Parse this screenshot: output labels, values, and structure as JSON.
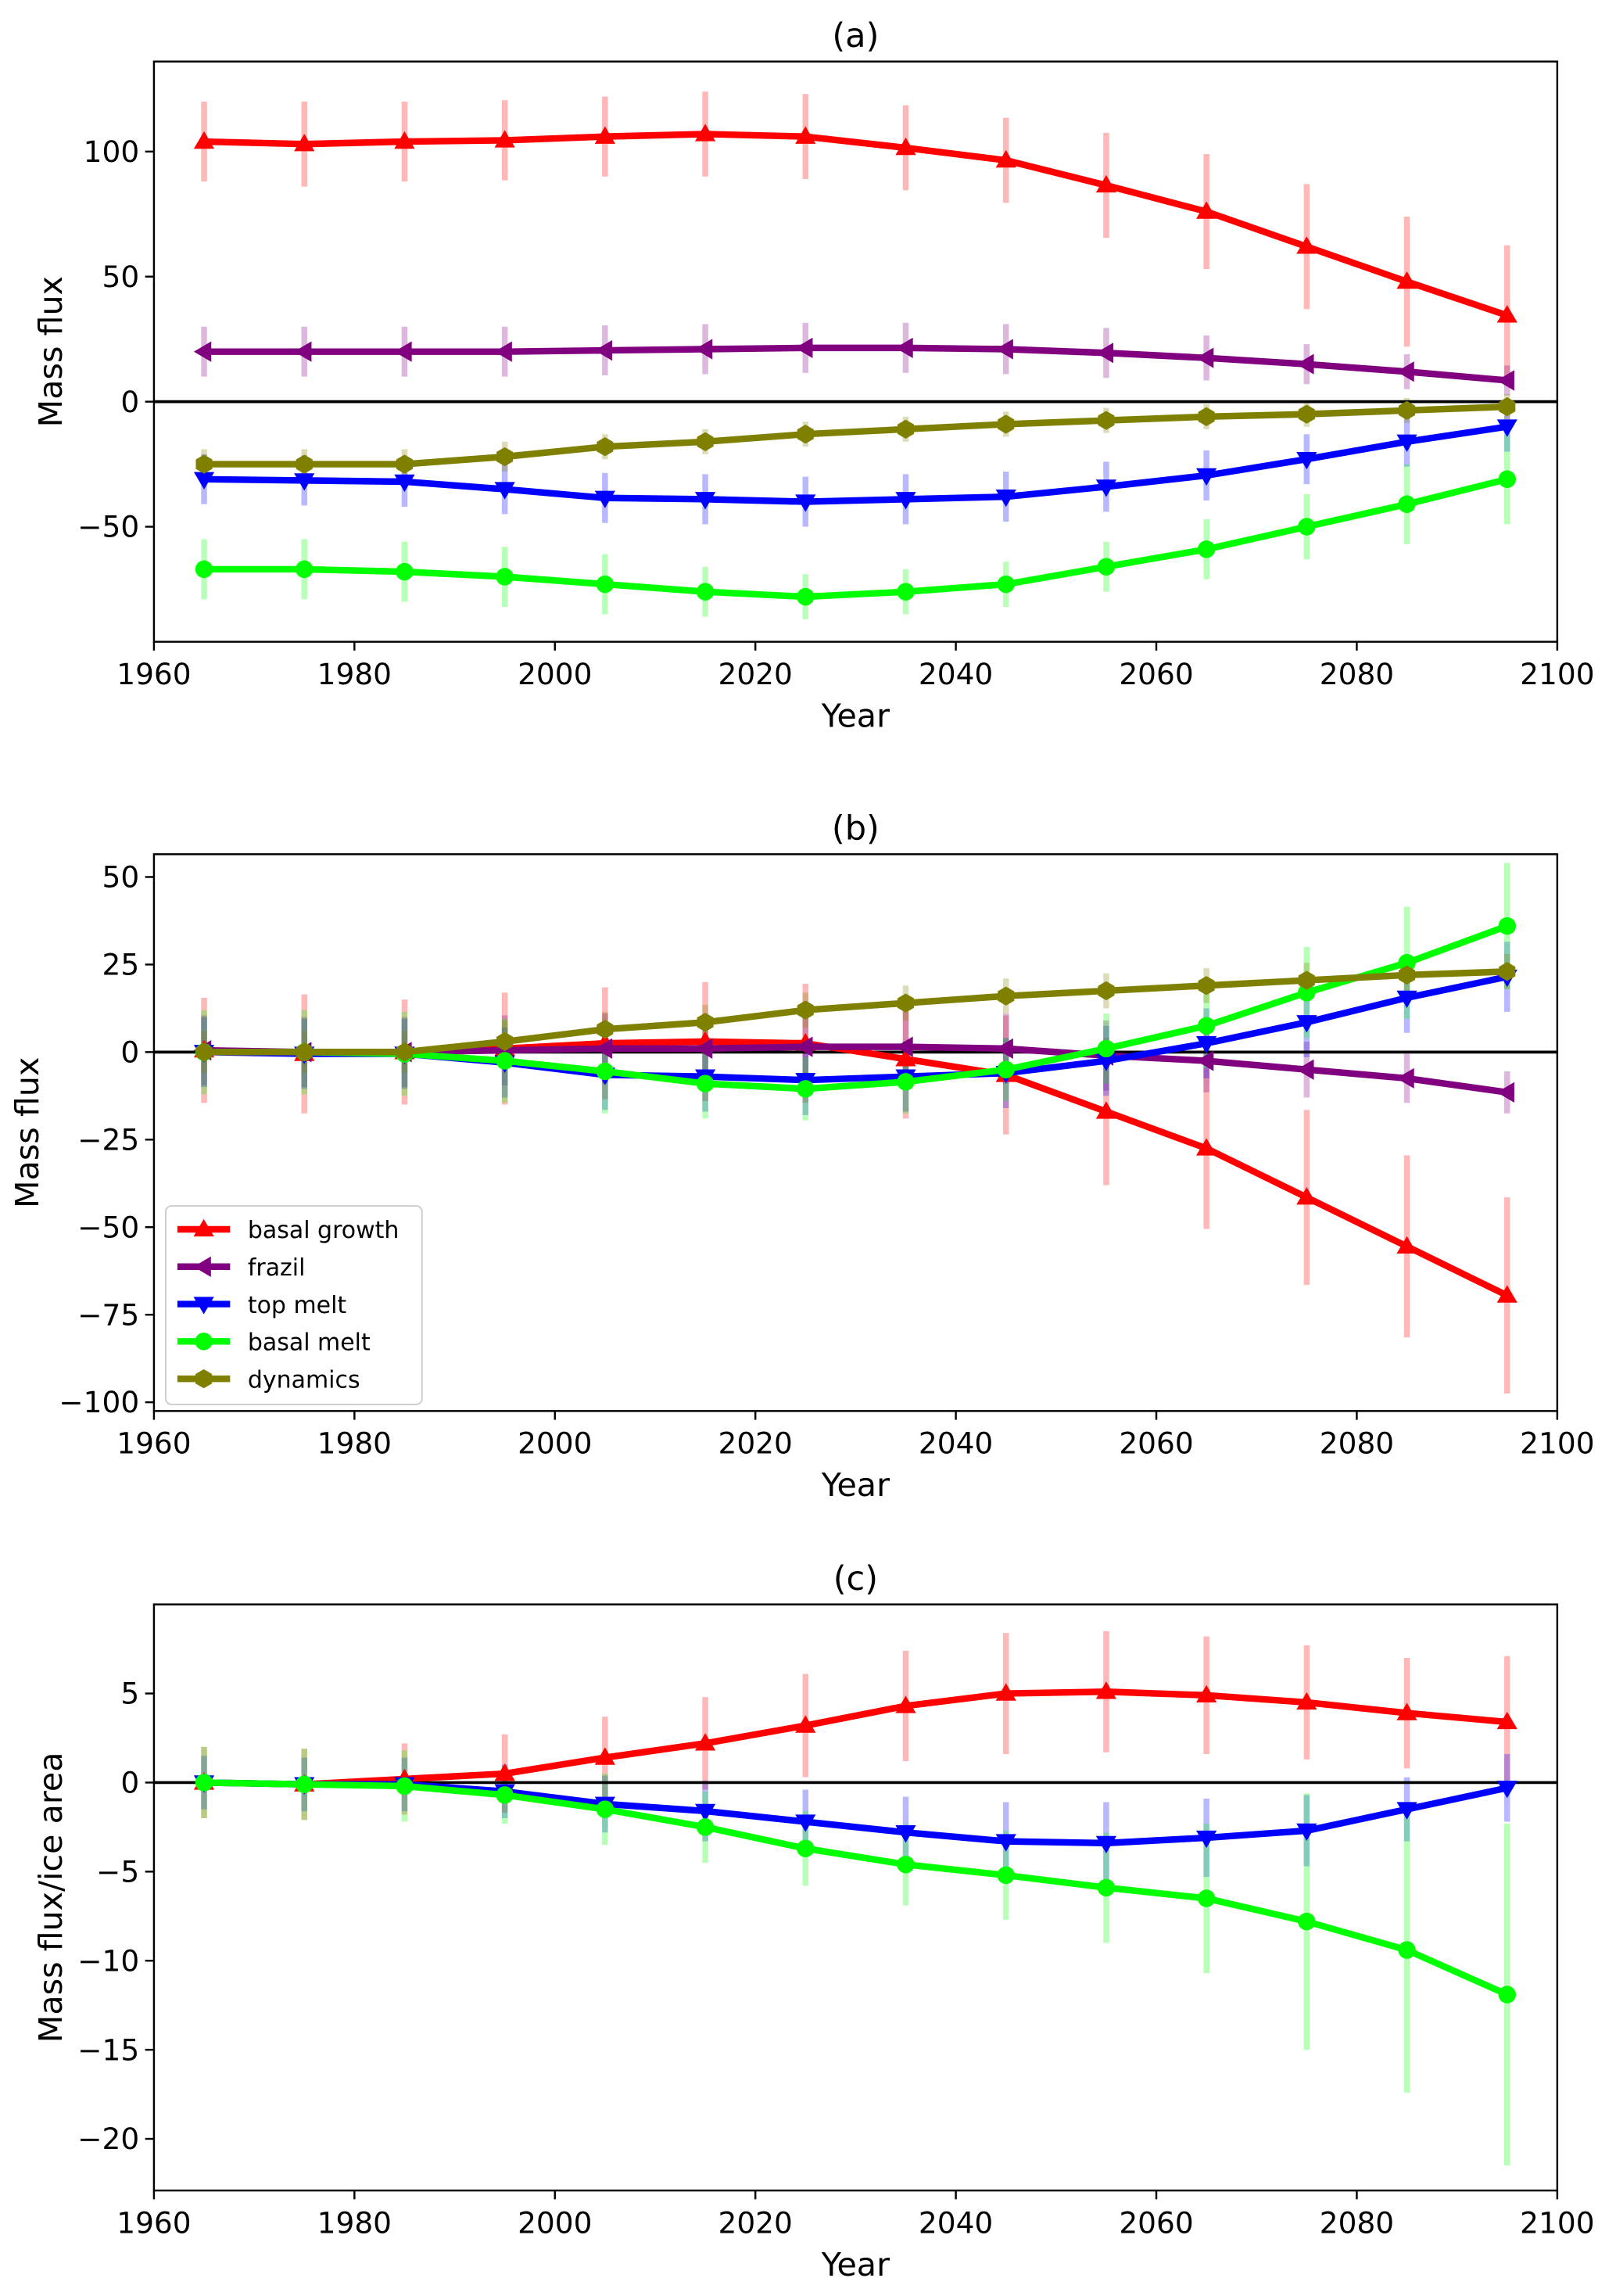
{
  "chart_data": [
    {
      "type": "line",
      "title": "(a)",
      "xlabel": "Year",
      "ylabel": "Mass flux",
      "xlim": [
        1960,
        2100
      ],
      "ylim": [
        -96,
        136
      ],
      "xticks": [
        1960,
        1980,
        2000,
        2020,
        2040,
        2060,
        2080,
        2100
      ],
      "yticks": [
        -50,
        0,
        50,
        100
      ],
      "x": [
        1965,
        1975,
        1985,
        1995,
        2005,
        2015,
        2025,
        2035,
        2045,
        2055,
        2065,
        2075,
        2085,
        2095
      ],
      "legend": null,
      "series": [
        {
          "name": "basal growth",
          "color": "#ff0000",
          "marker": "triangle-up",
          "values": [
            104,
            103,
            104,
            104.5,
            106,
            107,
            106,
            101.5,
            96.5,
            86.5,
            76,
            62,
            48,
            34.5
          ],
          "errors": [
            16,
            17,
            16,
            16,
            16,
            17,
            17,
            17,
            17,
            21,
            23,
            25,
            26,
            28
          ]
        },
        {
          "name": "frazil",
          "color": "#800080",
          "marker": "triangle-left",
          "values": [
            20,
            20,
            20,
            20,
            20.5,
            21,
            21.5,
            21.5,
            21,
            19.5,
            17.5,
            15,
            12,
            8.5
          ],
          "errors": [
            10,
            10,
            10,
            10,
            10,
            10,
            10,
            10,
            10,
            10,
            9,
            8,
            7,
            6
          ]
        },
        {
          "name": "top melt",
          "color": "#0000ff",
          "marker": "triangle-down",
          "values": [
            -31,
            -31.5,
            -32,
            -35,
            -38.5,
            -39,
            -40,
            -39,
            -38,
            -34,
            -29.5,
            -23,
            -16,
            -10
          ],
          "errors": [
            10,
            10,
            10,
            10,
            10,
            10,
            10,
            10,
            10,
            10,
            10,
            10,
            10,
            10
          ]
        },
        {
          "name": "basal melt",
          "color": "#00ff00",
          "marker": "circle",
          "values": [
            -67,
            -67,
            -68,
            -70,
            -73,
            -76,
            -78,
            -76,
            -73,
            -66,
            -59,
            -50,
            -41,
            -31
          ],
          "errors": [
            12,
            12,
            12,
            12,
            12,
            10,
            9,
            9,
            9,
            10,
            12,
            13,
            16,
            18
          ]
        },
        {
          "name": "dynamics",
          "color": "#808000",
          "marker": "hexagon",
          "values": [
            -25,
            -25,
            -25,
            -22,
            -18,
            -16,
            -13,
            -11,
            -9,
            -7.5,
            -6,
            -5,
            -3.5,
            -2
          ],
          "errors": [
            6,
            6,
            6,
            6,
            5,
            5,
            5,
            5,
            5,
            5,
            5,
            5,
            5,
            5
          ]
        }
      ]
    },
    {
      "type": "line",
      "title": "(b)",
      "xlabel": "Year",
      "ylabel": "Mass flux",
      "xlim": [
        1960,
        2100
      ],
      "ylim": [
        -102.5,
        56.5
      ],
      "xticks": [
        1960,
        1980,
        2000,
        2020,
        2040,
        2060,
        2080,
        2100
      ],
      "yticks": [
        -100,
        -75,
        -50,
        -25,
        0,
        25,
        50
      ],
      "x": [
        1965,
        1975,
        1985,
        1995,
        2005,
        2015,
        2025,
        2035,
        2045,
        2055,
        2065,
        2075,
        2085,
        2095
      ],
      "legend": "lower-left",
      "series": [
        {
          "name": "basal growth",
          "color": "#ff0000",
          "marker": "triangle-up",
          "values": [
            0.5,
            -0.5,
            0,
            1,
            2.5,
            3,
            2.5,
            -2,
            -6.5,
            -17,
            -27.5,
            -41.5,
            -55.5,
            -69.5
          ],
          "errors": [
            15,
            17,
            15,
            16,
            16,
            17,
            17,
            17,
            17,
            21,
            23,
            25,
            26,
            28
          ]
        },
        {
          "name": "frazil",
          "color": "#800080",
          "marker": "triangle-left",
          "values": [
            0.5,
            0,
            0,
            0.5,
            1,
            1,
            1.5,
            1.5,
            1,
            -1,
            -2.5,
            -5,
            -7.5,
            -11.5
          ],
          "errors": [
            10,
            10,
            10,
            10,
            10,
            10,
            10,
            10,
            10,
            10,
            9,
            8,
            7,
            6
          ]
        },
        {
          "name": "top melt",
          "color": "#0000ff",
          "marker": "triangle-down",
          "values": [
            0,
            -0.5,
            -0.5,
            -3,
            -6.5,
            -7,
            -8,
            -7,
            -6,
            -2.5,
            2.5,
            8.5,
            15.5,
            21.5
          ],
          "errors": [
            10,
            10,
            10,
            10,
            10,
            10,
            10,
            10,
            10,
            10,
            10,
            10,
            10,
            10
          ]
        },
        {
          "name": "basal melt",
          "color": "#00ff00",
          "marker": "circle",
          "values": [
            0,
            0,
            -0.5,
            -2.5,
            -5.5,
            -9,
            -10.5,
            -8.5,
            -5,
            1,
            7.5,
            17,
            25.5,
            36
          ],
          "errors": [
            12,
            12,
            12,
            12,
            12,
            10,
            9,
            9,
            9,
            10,
            12,
            13,
            16,
            18
          ]
        },
        {
          "name": "dynamics",
          "color": "#808000",
          "marker": "hexagon",
          "values": [
            0,
            0,
            0,
            3,
            6.5,
            8.5,
            12,
            14,
            16,
            17.5,
            19,
            20.5,
            22,
            23
          ],
          "errors": [
            6,
            6,
            6,
            6,
            5,
            5,
            5,
            5,
            5,
            5,
            5,
            5,
            5,
            5
          ]
        }
      ]
    },
    {
      "type": "line",
      "title": "(c)",
      "xlabel": "Year",
      "ylabel": "Mass flux/ice area",
      "xlim": [
        1960,
        2100
      ],
      "ylim": [
        -22.9,
        10
      ],
      "xticks": [
        1960,
        1980,
        2000,
        2020,
        2040,
        2060,
        2080,
        2100
      ],
      "yticks": [
        -20,
        -15,
        -10,
        -5,
        0,
        5
      ],
      "x": [
        1965,
        1975,
        1985,
        1995,
        2005,
        2015,
        2025,
        2035,
        2045,
        2055,
        2065,
        2075,
        2085,
        2095
      ],
      "legend": null,
      "series": [
        {
          "name": "basal growth",
          "color": "#ff0000",
          "marker": "triangle-up",
          "values": [
            0,
            -0.1,
            0.2,
            0.5,
            1.4,
            2.2,
            3.2,
            4.3,
            5,
            5.1,
            4.9,
            4.5,
            3.9,
            3.4
          ],
          "errors": [
            2,
            2,
            2,
            2.2,
            2.3,
            2.6,
            2.9,
            3.1,
            3.4,
            3.4,
            3.3,
            3.2,
            3.1,
            3.7
          ]
        },
        {
          "name": "top melt",
          "color": "#0000ff",
          "marker": "triangle-down",
          "values": [
            0,
            -0.1,
            -0.1,
            -0.5,
            -1.2,
            -1.6,
            -2.2,
            -2.8,
            -3.3,
            -3.4,
            -3.1,
            -2.7,
            -1.5,
            -0.3
          ],
          "errors": [
            1.5,
            1.5,
            1.5,
            1.5,
            1.6,
            1.7,
            1.8,
            2,
            2.2,
            2.3,
            2.2,
            2,
            1.8,
            1.9
          ]
        },
        {
          "name": "basal melt",
          "color": "#00ff00",
          "marker": "circle",
          "values": [
            0,
            -0.1,
            -0.2,
            -0.7,
            -1.5,
            -2.5,
            -3.7,
            -4.6,
            -5.2,
            -5.9,
            -6.5,
            -7.8,
            -9.4,
            -11.9
          ],
          "errors": [
            2,
            2,
            2,
            1.6,
            2,
            2,
            2.1,
            2.3,
            2.5,
            3.1,
            4.2,
            7.2,
            8,
            9.6
          ]
        }
      ]
    }
  ]
}
